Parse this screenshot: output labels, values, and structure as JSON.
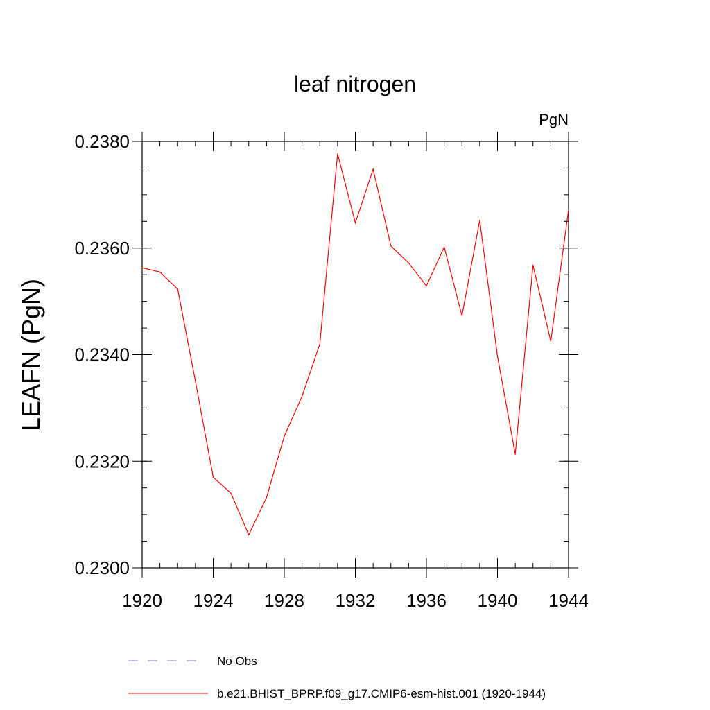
{
  "chart_data": {
    "type": "line",
    "title": "leaf nitrogen",
    "units_label": "PgN",
    "xlabel": "",
    "ylabel": "LEAFN  (PgN)",
    "xlim": [
      1920,
      1944
    ],
    "ylim": [
      0.23,
      0.238
    ],
    "x_ticks": [
      1920,
      1924,
      1928,
      1932,
      1936,
      1940,
      1944
    ],
    "x_tick_labels": [
      "1920",
      "1924",
      "1928",
      "1932",
      "1936",
      "1940",
      "1944"
    ],
    "y_ticks": [
      0.23,
      0.232,
      0.234,
      0.236,
      0.238
    ],
    "y_tick_labels": [
      "0.2300",
      "0.2320",
      "0.2340",
      "0.2360",
      "0.2380"
    ],
    "y_minor_step": 0.0005,
    "x_minor_step": 1,
    "x": [
      1920,
      1921,
      1922,
      1923,
      1924,
      1925,
      1926,
      1927,
      1928,
      1929,
      1930,
      1931,
      1932,
      1933,
      1934,
      1935,
      1936,
      1937,
      1938,
      1939,
      1940,
      1941,
      1942,
      1943,
      1944
    ],
    "series": [
      {
        "name": "b.e21.BHIST_BPRP.f09_g17.CMIP6-esm-hist.001 (1920-1944)",
        "color": "#ff0000",
        "style": "solid",
        "values": [
          0.23563,
          0.23555,
          0.23523,
          0.2335,
          0.2317,
          0.2314,
          0.23062,
          0.23132,
          0.23247,
          0.23322,
          0.2342,
          0.23777,
          0.23647,
          0.23748,
          0.23604,
          0.23572,
          0.23529,
          0.23602,
          0.23473,
          0.23652,
          0.23397,
          0.23213,
          0.23568,
          0.23425,
          0.23672
        ]
      }
    ],
    "legend": [
      {
        "label": "No Obs",
        "color": "#8080c0",
        "style": "dashed"
      },
      {
        "label": "b.e21.BHIST_BPRP.f09_g17.CMIP6-esm-hist.001 (1920-1944)",
        "color": "#ff0000",
        "style": "solid"
      }
    ]
  }
}
